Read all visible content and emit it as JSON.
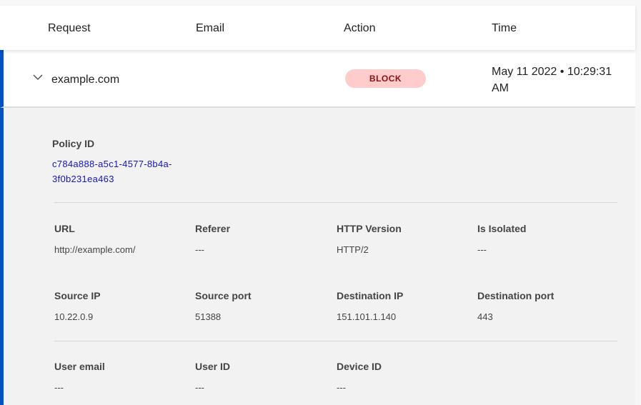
{
  "columns": [
    "Request",
    "Email",
    "Action",
    "Time"
  ],
  "row": {
    "request": "example.com",
    "email": "",
    "action": "BLOCK",
    "time": "May 11 2022 • 10:29:31 AM"
  },
  "details": {
    "policy": {
      "label": "Policy ID",
      "value": "c784a888-a5c1-4577-8b4a-3f0b231ea463"
    },
    "fields": [
      {
        "label": "URL",
        "value": "http://example.com/"
      },
      {
        "label": "Referer",
        "value": "---"
      },
      {
        "label": "HTTP Version",
        "value": "HTTP/2"
      },
      {
        "label": "Is Isolated",
        "value": "---"
      },
      {
        "label": "Source IP",
        "value": "10.22.0.9"
      },
      {
        "label": "Source port",
        "value": "51388"
      },
      {
        "label": "Destination IP",
        "value": "151.101.1.140"
      },
      {
        "label": "Destination port",
        "value": "443"
      },
      {
        "label": "User email",
        "value": "---"
      },
      {
        "label": "User ID",
        "value": "---"
      },
      {
        "label": "Device ID",
        "value": "---"
      }
    ]
  },
  "colors": {
    "accent": "#0051c3",
    "block_bg": "#ffcccb",
    "block_text": "#8a1010",
    "link": "#1515c8"
  }
}
